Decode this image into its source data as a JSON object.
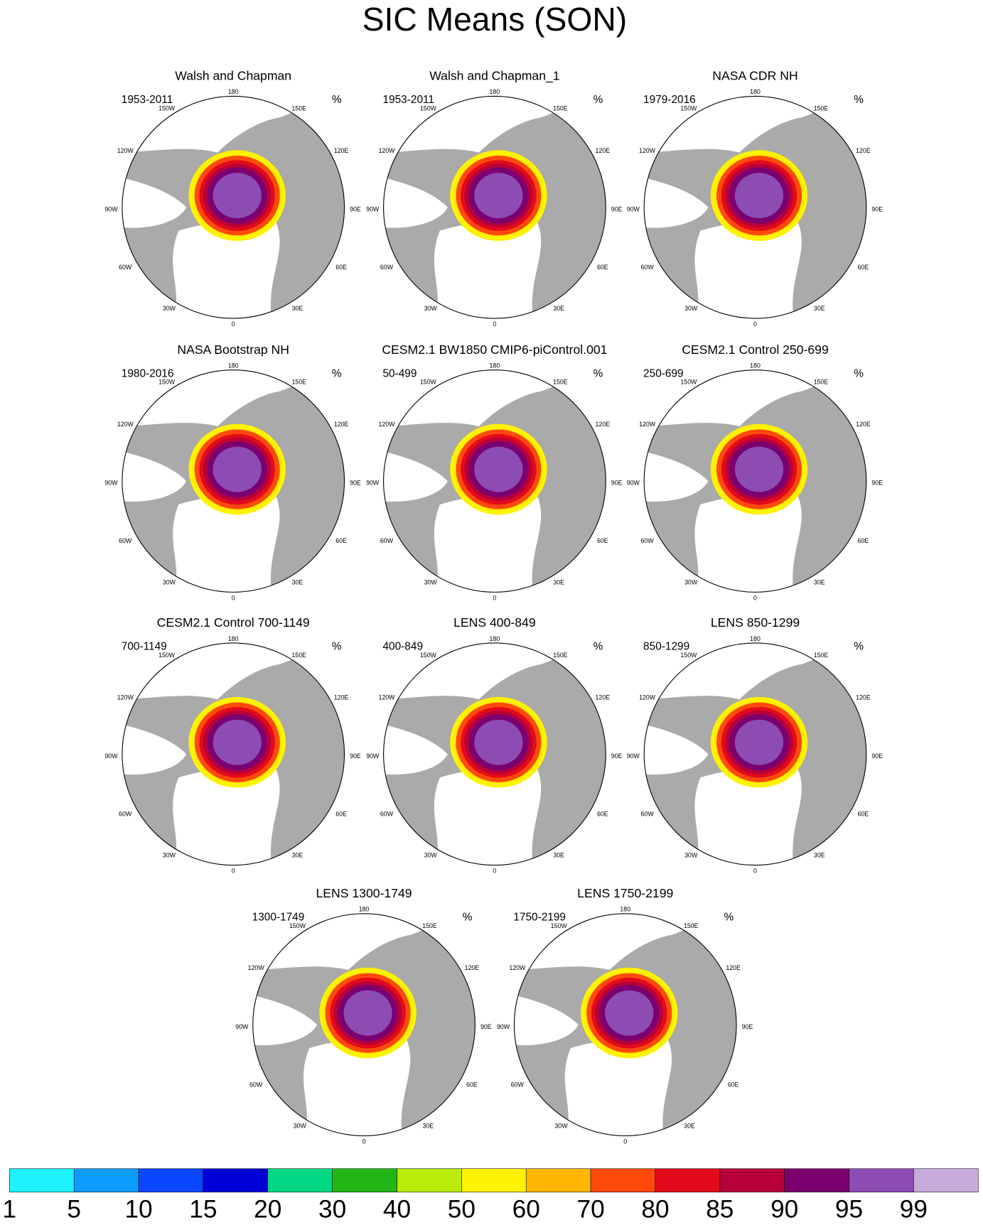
{
  "title": "SIC Means (SON)",
  "units": "%",
  "panels": [
    {
      "title": "Walsh and Chapman",
      "period": "1953-2011"
    },
    {
      "title": "Walsh and Chapman_1",
      "period": "1953-2011"
    },
    {
      "title": "NASA CDR NH",
      "period": "1979-2016"
    },
    {
      "title": "NASA Bootstrap NH",
      "period": "1980-2016"
    },
    {
      "title": "CESM2.1 BW1850 CMIP6-piControl.001",
      "period": "50-499"
    },
    {
      "title": "CESM2.1 Control 250-699",
      "period": "250-699"
    },
    {
      "title": "CESM2.1 Control 700-1149",
      "period": "700-1149"
    },
    {
      "title": "LENS 400-849",
      "period": "400-849"
    },
    {
      "title": "LENS 850-1299",
      "period": "850-1299"
    },
    {
      "title": "LENS 1300-1749",
      "period": "1300-1749"
    },
    {
      "title": "LENS 1750-2199",
      "period": "1750-2199"
    }
  ],
  "lon_labels": [
    "180",
    "150W",
    "150E",
    "120W",
    "120E",
    "90W",
    "90E",
    "60W",
    "60E",
    "30W",
    "30E",
    "0"
  ],
  "colorbar": {
    "colors": [
      "#1ef3ff",
      "#0c9cff",
      "#0a46ff",
      "#0000d6",
      "#00d884",
      "#22b614",
      "#b9ec0a",
      "#fff200",
      "#ffb600",
      "#ff4a0c",
      "#e30a1c",
      "#b7003a",
      "#7b0070",
      "#8c4cb4",
      "#c9abdb"
    ],
    "levels": [
      1,
      5,
      10,
      15,
      20,
      30,
      40,
      50,
      60,
      70,
      80,
      85,
      90,
      95,
      99
    ]
  }
}
